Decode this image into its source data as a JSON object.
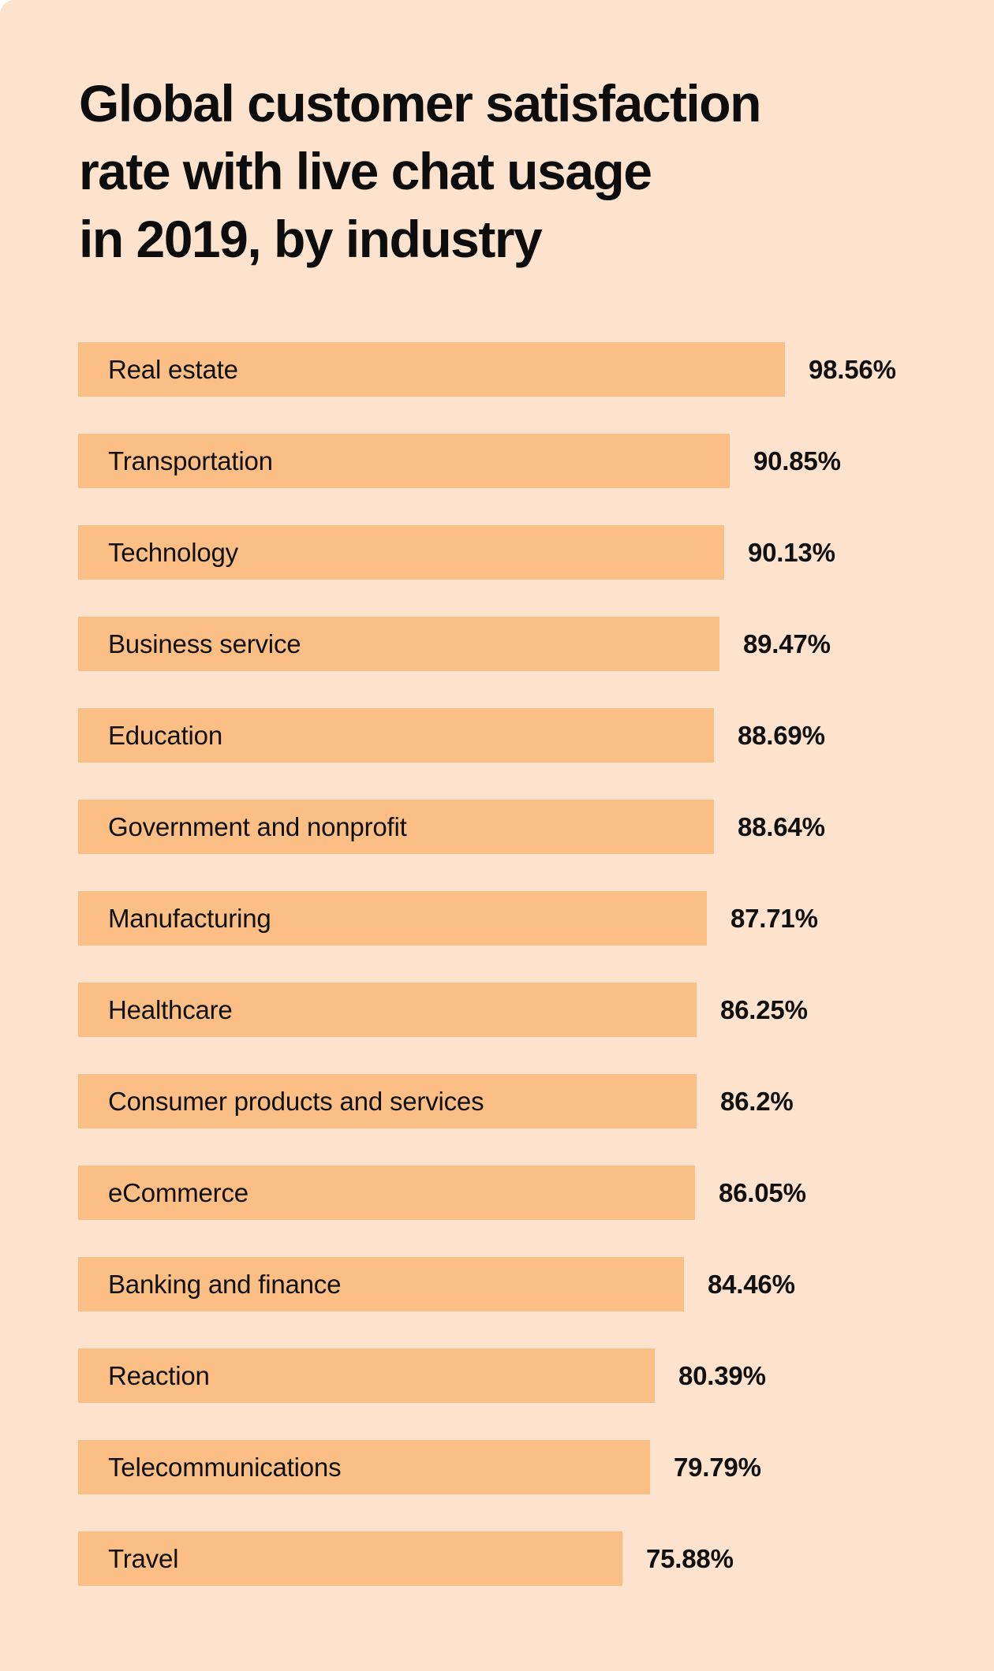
{
  "title": {
    "lines": [
      "Global customer satisfaction",
      "rate with live chat usage",
      "in 2019, by industry"
    ],
    "full": "Global customer satisfaction rate with live chat usage in 2019, by industry"
  },
  "chart_data": {
    "type": "bar",
    "orientation": "horizontal",
    "title": "Global customer satisfaction rate with live chat usage in 2019, by industry",
    "unit": "%",
    "xlim": [
      0,
      100
    ],
    "grid": false,
    "legend": false,
    "bar_color": "#FBBE85",
    "background_color": "#FDE3CD",
    "text_color": "#101010",
    "categories": [
      "Real estate",
      "Transportation",
      "Technology",
      "Business service",
      "Education",
      "Government and nonprofit",
      "Manufacturing",
      "Healthcare",
      "Consumer products and services",
      "eCommerce",
      "Banking and finance",
      "Reaction",
      "Telecommunications",
      "Travel"
    ],
    "values": [
      98.56,
      90.85,
      90.13,
      89.47,
      88.69,
      88.64,
      87.71,
      86.25,
      86.2,
      86.05,
      84.46,
      80.39,
      79.79,
      75.88
    ],
    "value_labels": [
      "98.56%",
      "90.85%",
      "90.13%",
      "89.47%",
      "88.69%",
      "88.64%",
      "87.71%",
      "86.25%",
      "86.2%",
      "86.05%",
      "84.46%",
      "80.39%",
      "79.79%",
      "75.88%"
    ]
  }
}
